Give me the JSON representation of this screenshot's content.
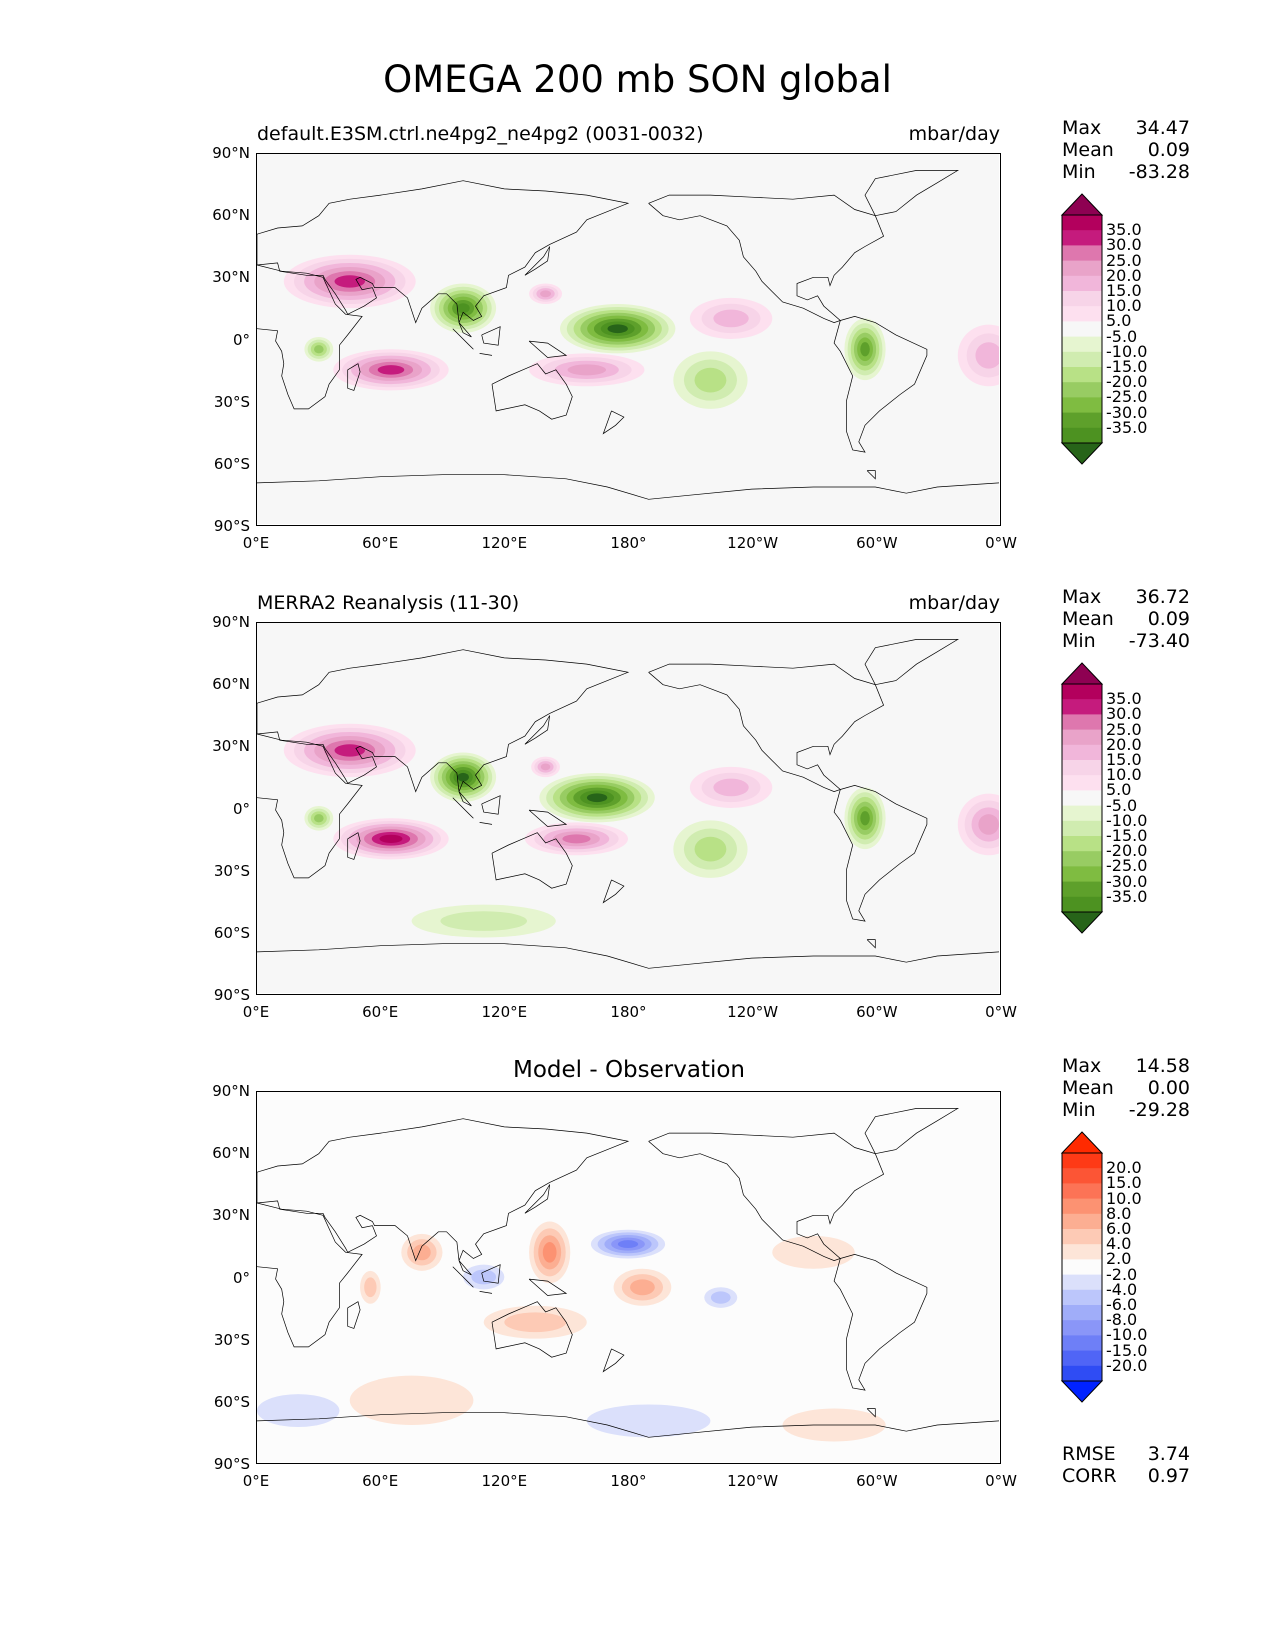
{
  "title": "OMEGA 200 mb SON global",
  "panels": [
    {
      "left_title": "default.E3SM.ctrl.ne4pg2_ne4pg2 (0031-0032)",
      "right_title": "mbar/day",
      "stats": [
        {
          "label": "Max",
          "value": "34.47"
        },
        {
          "label": "Mean",
          "value": "0.09"
        },
        {
          "label": "Min",
          "value": "-83.28"
        }
      ]
    },
    {
      "left_title": "MERRA2 Reanalysis (11-30)",
      "right_title": "mbar/day",
      "stats": [
        {
          "label": "Max",
          "value": "36.72"
        },
        {
          "label": "Mean",
          "value": "0.09"
        },
        {
          "label": "Min",
          "value": "-73.40"
        }
      ]
    },
    {
      "center_title": "Model - Observation",
      "stats": [
        {
          "label": "Max",
          "value": "14.58"
        },
        {
          "label": "Mean",
          "value": "0.00"
        },
        {
          "label": "Min",
          "value": "-29.28"
        }
      ],
      "extra_stats": [
        {
          "label": "RMSE",
          "value": "3.74"
        },
        {
          "label": "CORR",
          "value": "0.97"
        }
      ]
    }
  ],
  "chart_data": [
    {
      "type": "heatmap",
      "title": "default.E3SM.ctrl.ne4pg2_ne4pg2 (0031-0032)",
      "units": "mbar/day",
      "x_ticks": [
        "0°E",
        "60°E",
        "120°E",
        "180°",
        "120°W",
        "60°W",
        "0°W"
      ],
      "y_ticks": [
        "90°N",
        "60°N",
        "30°N",
        "0°",
        "30°S",
        "60°S",
        "90°S"
      ],
      "xlim": [
        0,
        360
      ],
      "ylim": [
        -90,
        90
      ],
      "levels": [
        "35.0",
        "30.0",
        "25.0",
        "20.0",
        "15.0",
        "10.0",
        "5.0",
        "-5.0",
        "-10.0",
        "-15.0",
        "-20.0",
        "-25.0",
        "-30.0",
        "-35.0"
      ],
      "colors": [
        "#8e0152",
        "#b3005d",
        "#c51b7d",
        "#de77ae",
        "#e9a3c9",
        "#f1b6da",
        "#f7d4e8",
        "#fde0ef",
        "#f7f7f7",
        "#e6f5d0",
        "#d0ecb0",
        "#b8e186",
        "#98cc63",
        "#7fbc41",
        "#5ea02b",
        "#4d9221",
        "#276419"
      ],
      "features": [
        {
          "lon": 45,
          "lat": 28,
          "rx": 32,
          "ry": 13,
          "v": 30
        },
        {
          "lon": 65,
          "lat": -15,
          "rx": 28,
          "ry": 10,
          "v": 28
        },
        {
          "lon": 175,
          "lat": 5,
          "rx": 28,
          "ry": 12,
          "v": -38
        },
        {
          "lon": 100,
          "lat": 15,
          "rx": 16,
          "ry": 12,
          "v": -35
        },
        {
          "lon": 295,
          "lat": -5,
          "rx": 10,
          "ry": 15,
          "v": -28
        },
        {
          "lon": 30,
          "lat": -5,
          "rx": 7,
          "ry": 6,
          "v": -20
        },
        {
          "lon": 160,
          "lat": -15,
          "rx": 28,
          "ry": 8,
          "v": 20
        },
        {
          "lon": 230,
          "lat": 10,
          "rx": 20,
          "ry": 10,
          "v": 15
        },
        {
          "lon": 355,
          "lat": -8,
          "rx": 15,
          "ry": 15,
          "v": 15
        },
        {
          "lon": 140,
          "lat": 22,
          "rx": 8,
          "ry": 5,
          "v": 20
        },
        {
          "lon": 220,
          "lat": -20,
          "rx": 18,
          "ry": 14,
          "v": -12
        }
      ]
    },
    {
      "type": "heatmap",
      "title": "MERRA2 Reanalysis (11-30)",
      "units": "mbar/day",
      "x_ticks": [
        "0°E",
        "60°E",
        "120°E",
        "180°",
        "120°W",
        "60°W",
        "0°W"
      ],
      "y_ticks": [
        "90°N",
        "60°N",
        "30°N",
        "0°",
        "30°S",
        "60°S",
        "90°S"
      ],
      "xlim": [
        0,
        360
      ],
      "ylim": [
        -90,
        90
      ],
      "levels": [
        "35.0",
        "30.0",
        "25.0",
        "20.0",
        "15.0",
        "10.0",
        "5.0",
        "-5.0",
        "-10.0",
        "-15.0",
        "-20.0",
        "-25.0",
        "-30.0",
        "-35.0"
      ],
      "colors": [
        "#8e0152",
        "#b3005d",
        "#c51b7d",
        "#de77ae",
        "#e9a3c9",
        "#f1b6da",
        "#f7d4e8",
        "#fde0ef",
        "#f7f7f7",
        "#e6f5d0",
        "#d0ecb0",
        "#b8e186",
        "#98cc63",
        "#7fbc41",
        "#5ea02b",
        "#4d9221",
        "#276419"
      ],
      "features": [
        {
          "lon": 45,
          "lat": 28,
          "rx": 32,
          "ry": 13,
          "v": 30
        },
        {
          "lon": 65,
          "lat": -15,
          "rx": 28,
          "ry": 10,
          "v": 33
        },
        {
          "lon": 165,
          "lat": 5,
          "rx": 28,
          "ry": 12,
          "v": -38
        },
        {
          "lon": 100,
          "lat": 15,
          "rx": 16,
          "ry": 12,
          "v": -38
        },
        {
          "lon": 295,
          "lat": -5,
          "rx": 10,
          "ry": 15,
          "v": -28
        },
        {
          "lon": 30,
          "lat": -5,
          "rx": 7,
          "ry": 6,
          "v": -20
        },
        {
          "lon": 155,
          "lat": -15,
          "rx": 25,
          "ry": 8,
          "v": 22
        },
        {
          "lon": 230,
          "lat": 10,
          "rx": 20,
          "ry": 10,
          "v": 15
        },
        {
          "lon": 355,
          "lat": -8,
          "rx": 15,
          "ry": 15,
          "v": 18
        },
        {
          "lon": 140,
          "lat": 20,
          "rx": 7,
          "ry": 5,
          "v": 18
        },
        {
          "lon": 220,
          "lat": -20,
          "rx": 18,
          "ry": 14,
          "v": -12
        },
        {
          "lon": 110,
          "lat": -55,
          "rx": 35,
          "ry": 8,
          "v": -10
        }
      ]
    },
    {
      "type": "heatmap",
      "title": "Model - Observation",
      "x_ticks": [
        "0°E",
        "60°E",
        "120°E",
        "180°",
        "120°W",
        "60°W",
        "0°W"
      ],
      "y_ticks": [
        "90°N",
        "60°N",
        "30°N",
        "0°",
        "30°S",
        "60°S",
        "90°S"
      ],
      "xlim": [
        0,
        360
      ],
      "ylim": [
        -90,
        90
      ],
      "levels": [
        "20.0",
        "15.0",
        "10.0",
        "8.0",
        "6.0",
        "4.0",
        "2.0",
        "-2.0",
        "-4.0",
        "-6.0",
        "-8.0",
        "-10.0",
        "-15.0",
        "-20.0"
      ],
      "colors": [
        "#ff2a00",
        "#fe3a16",
        "#fc5535",
        "#fc7356",
        "#fc9272",
        "#fcae92",
        "#fdcab5",
        "#fde5d8",
        "#fcfcfc",
        "#dbe0fb",
        "#bcc6fb",
        "#a0adf9",
        "#8a96f8",
        "#6e7ff7",
        "#5065f6",
        "#2f4cf4",
        "#0022ff"
      ],
      "rmse": "3.74",
      "corr": "0.97",
      "features": [
        {
          "lon": 80,
          "lat": 12,
          "rx": 10,
          "ry": 9,
          "v": 12
        },
        {
          "lon": 142,
          "lat": 12,
          "rx": 10,
          "ry": 15,
          "v": 16
        },
        {
          "lon": 180,
          "lat": 16,
          "rx": 18,
          "ry": 7,
          "v": -25
        },
        {
          "lon": 187,
          "lat": -5,
          "rx": 14,
          "ry": 9,
          "v": 12
        },
        {
          "lon": 110,
          "lat": 0,
          "rx": 10,
          "ry": 6,
          "v": -6
        },
        {
          "lon": 135,
          "lat": -22,
          "rx": 25,
          "ry": 8,
          "v": 6
        },
        {
          "lon": 225,
          "lat": -10,
          "rx": 8,
          "ry": 5,
          "v": -10
        },
        {
          "lon": 75,
          "lat": -60,
          "rx": 30,
          "ry": 12,
          "v": 4
        },
        {
          "lon": 280,
          "lat": -72,
          "rx": 25,
          "ry": 8,
          "v": 4
        },
        {
          "lon": 20,
          "lat": -65,
          "rx": 20,
          "ry": 8,
          "v": -4
        },
        {
          "lon": 190,
          "lat": -70,
          "rx": 30,
          "ry": 8,
          "v": -4
        },
        {
          "lon": 270,
          "lat": 12,
          "rx": 20,
          "ry": 8,
          "v": 3
        },
        {
          "lon": 55,
          "lat": -5,
          "rx": 5,
          "ry": 8,
          "v": 6
        }
      ]
    }
  ]
}
